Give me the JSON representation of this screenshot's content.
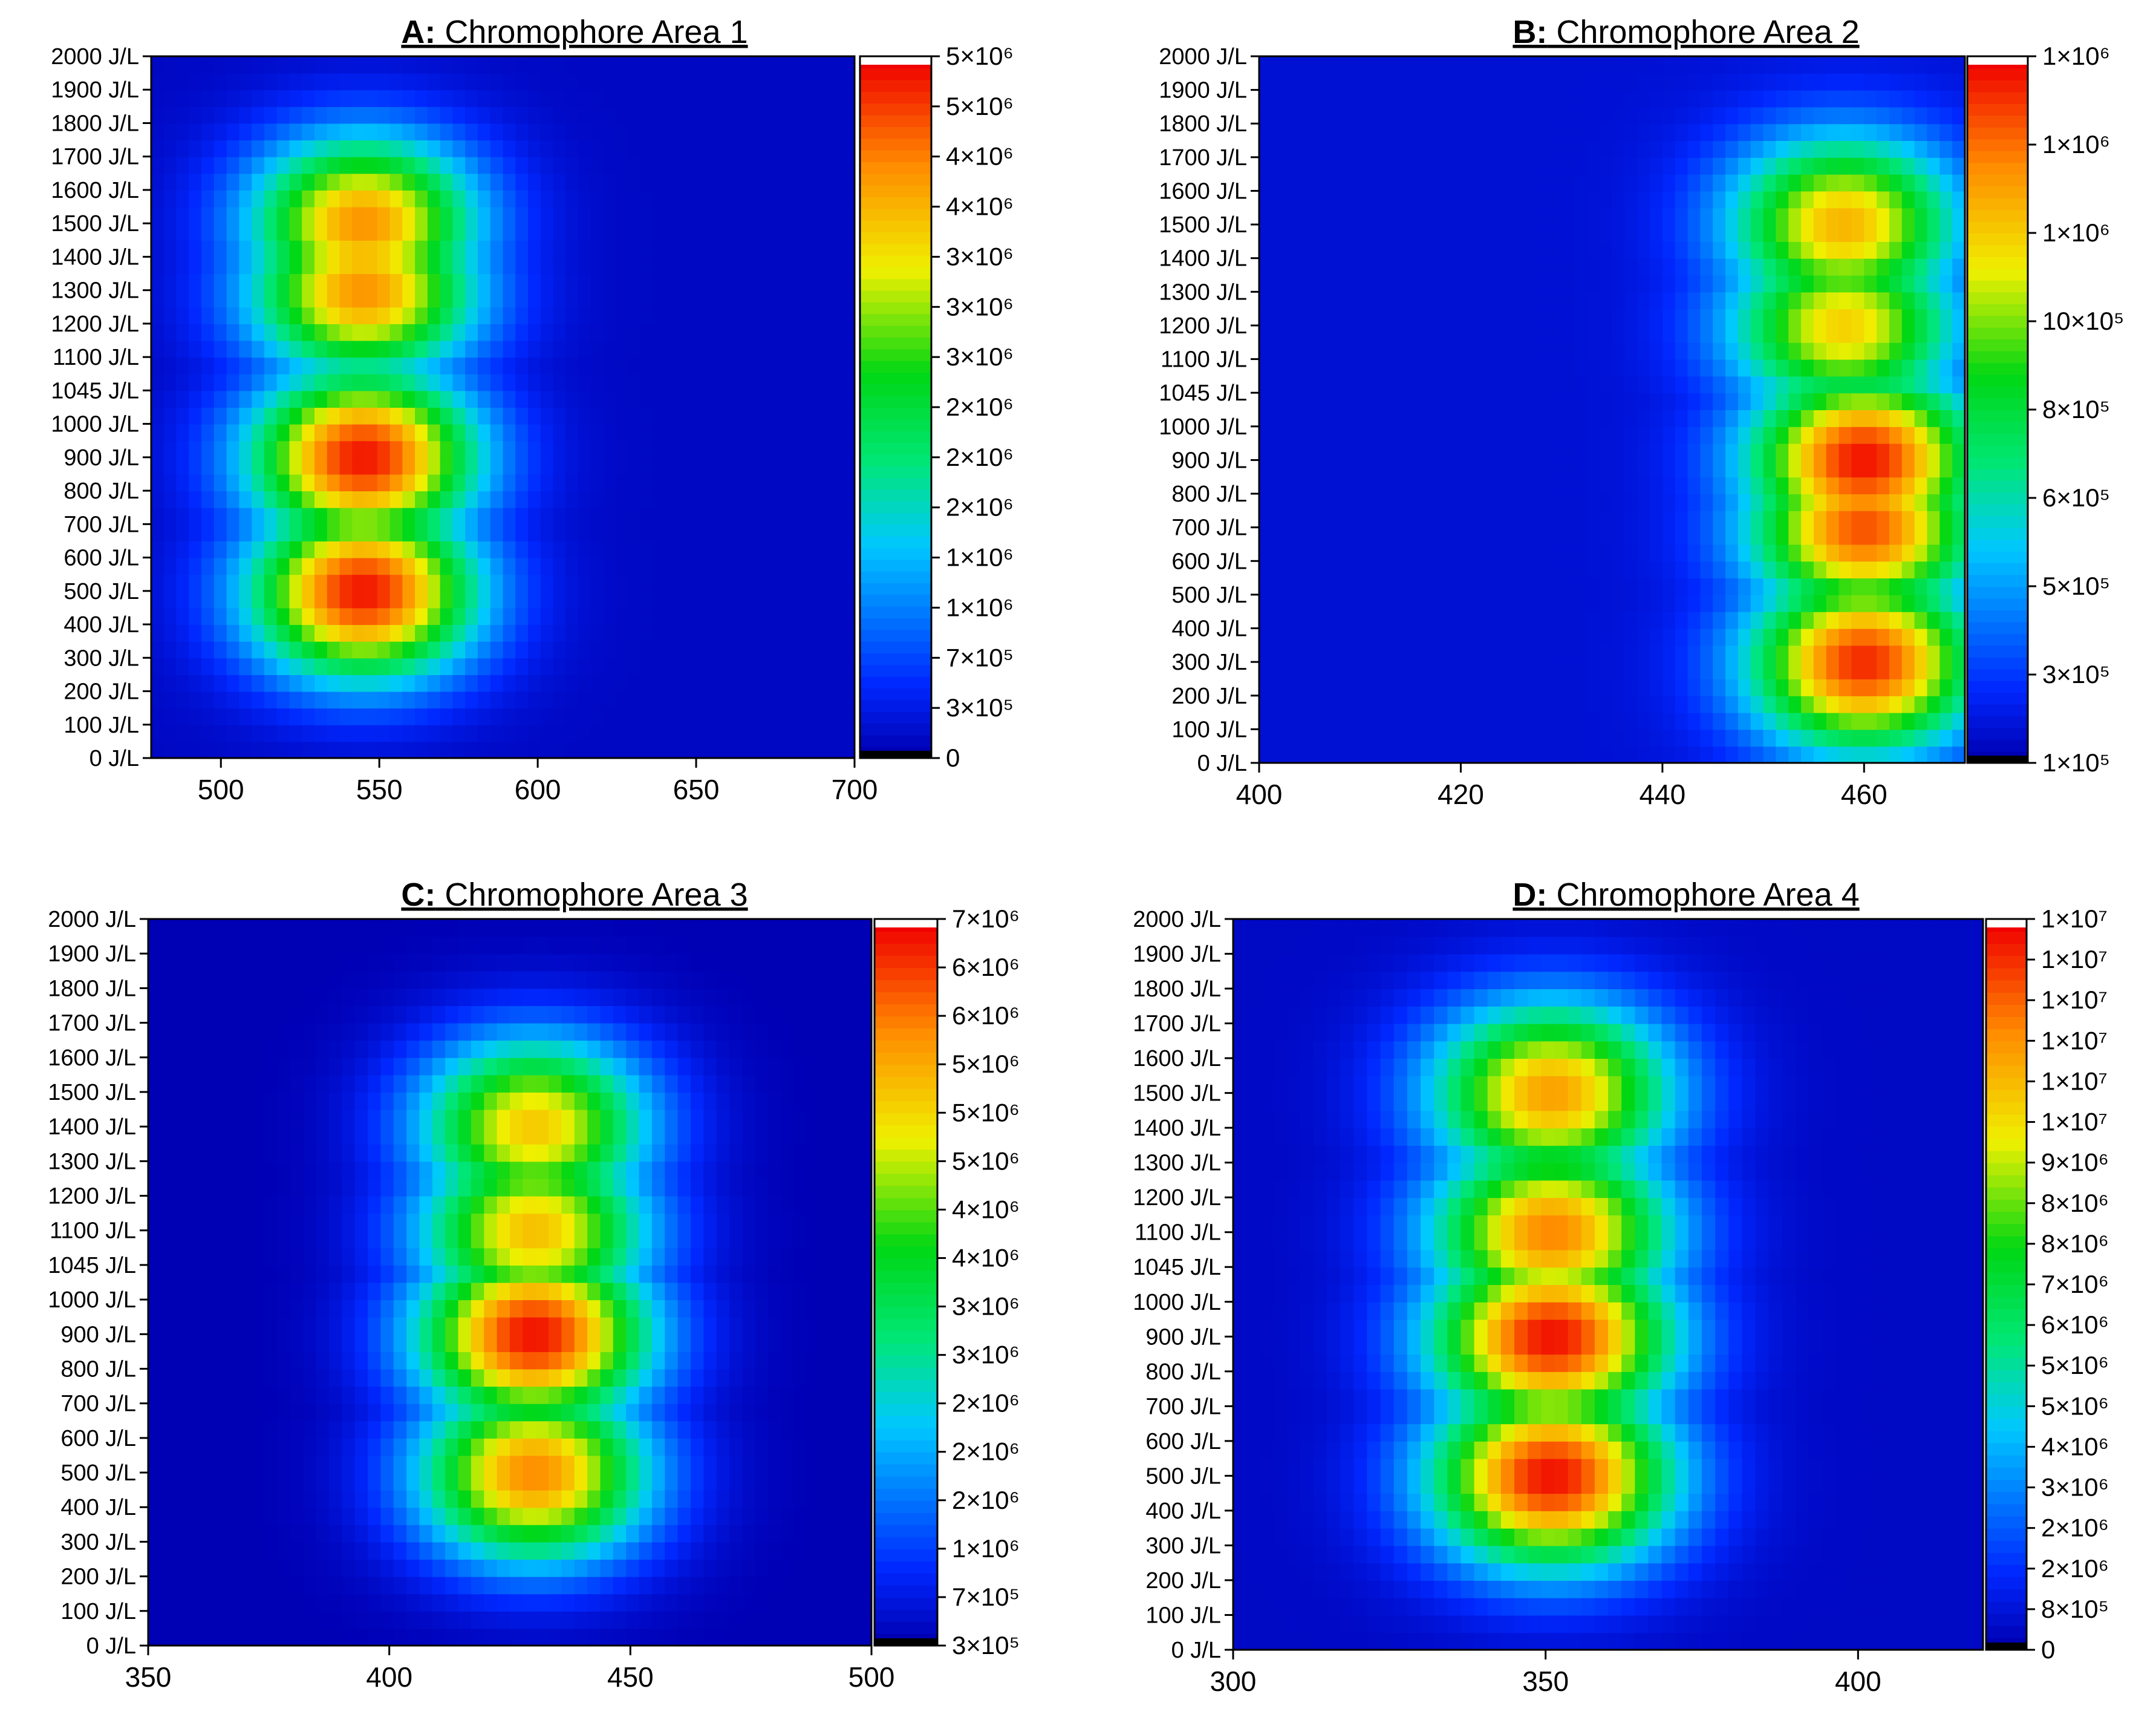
{
  "chart_data": [
    {
      "type": "heatmap",
      "title_prefix": "A:",
      "title": "Chromophore Area 1",
      "xlabel": "",
      "ylabel": "",
      "x_ticks": [
        "500",
        "550",
        "600",
        "650",
        "700"
      ],
      "x_tick_values": [
        500,
        550,
        600,
        650,
        700
      ],
      "xlim": [
        478,
        700
      ],
      "y_ticks": [
        "0 J/L",
        "100 J/L",
        "200 J/L",
        "300 J/L",
        "400 J/L",
        "500 J/L",
        "600 J/L",
        "700 J/L",
        "800 J/L",
        "900 J/L",
        "1000 J/L",
        "1045 J/L",
        "1100 J/L",
        "1200 J/L",
        "1300 J/L",
        "1400 J/L",
        "1500 J/L",
        "1600 J/L",
        "1700 J/L",
        "1800 J/L",
        "1900 J/L",
        "2000 J/L"
      ],
      "colorbar_ticks": [
        "0",
        "3×10⁵",
        "7×10⁵",
        "1×10⁶",
        "1×10⁶",
        "2×10⁶",
        "2×10⁶",
        "2×10⁶",
        "3×10⁶",
        "3×10⁶",
        "3×10⁶",
        "4×10⁶",
        "4×10⁶",
        "5×10⁶",
        "5×10⁶"
      ],
      "value_range": [
        0,
        5000000
      ],
      "peaks": [
        {
          "x": 545,
          "y_index": 5,
          "value": 4900000
        },
        {
          "x": 545,
          "y_index": 9,
          "value": 4900000
        },
        {
          "x": 545,
          "y_index": 14,
          "value": 4200000
        },
        {
          "x": 545,
          "y_index": 16,
          "value": 4200000
        }
      ],
      "background_value": 100000
    },
    {
      "type": "heatmap",
      "title_prefix": "B:",
      "title": "Chromophore Area 2",
      "xlabel": "",
      "ylabel": "",
      "x_ticks": [
        "400",
        "420",
        "440",
        "460"
      ],
      "x_tick_values": [
        400,
        420,
        440,
        460
      ],
      "xlim": [
        400,
        470
      ],
      "y_ticks": [
        "0 J/L",
        "100 J/L",
        "200 J/L",
        "300 J/L",
        "400 J/L",
        "500 J/L",
        "600 J/L",
        "700 J/L",
        "800 J/L",
        "900 J/L",
        "1000 J/L",
        "1045 J/L",
        "1100 J/L",
        "1200 J/L",
        "1300 J/L",
        "1400 J/L",
        "1500 J/L",
        "1600 J/L",
        "1700 J/L",
        "1800 J/L",
        "1900 J/L",
        "2000 J/L"
      ],
      "colorbar_ticks": [
        "1×10⁵",
        "3×10⁵",
        "5×10⁵",
        "6×10⁵",
        "8×10⁵",
        "10×10⁵",
        "1×10⁶",
        "1×10⁶",
        "1×10⁶"
      ],
      "value_range": [
        100000,
        1300000
      ],
      "peaks": [
        {
          "x": 460,
          "y_index": 3,
          "value": 1250000
        },
        {
          "x": 460,
          "y_index": 9,
          "value": 1280000
        },
        {
          "x": 460,
          "y_index": 7,
          "value": 1200000
        },
        {
          "x": 458,
          "y_index": 13,
          "value": 1000000
        },
        {
          "x": 458,
          "y_index": 16,
          "value": 1050000
        }
      ],
      "background_value": 150000
    },
    {
      "type": "heatmap",
      "title_prefix": "C:",
      "title": "Chromophore Area 3",
      "xlabel": "",
      "ylabel": "",
      "x_ticks": [
        "350",
        "400",
        "450",
        "500"
      ],
      "x_tick_values": [
        350,
        400,
        450,
        500
      ],
      "xlim": [
        350,
        500
      ],
      "y_ticks": [
        "0 J/L",
        "100 J/L",
        "200 J/L",
        "300 J/L",
        "400 J/L",
        "500 J/L",
        "600 J/L",
        "700 J/L",
        "800 J/L",
        "900 J/L",
        "1000 J/L",
        "1045 J/L",
        "1100 J/L",
        "1200 J/L",
        "1300 J/L",
        "1400 J/L",
        "1500 J/L",
        "1600 J/L",
        "1700 J/L",
        "1800 J/L",
        "1900 J/L",
        "2000 J/L"
      ],
      "colorbar_ticks": [
        "3×10⁵",
        "7×10⁵",
        "1×10⁶",
        "2×10⁶",
        "2×10⁶",
        "2×10⁶",
        "3×10⁶",
        "3×10⁶",
        "4×10⁶",
        "4×10⁶",
        "5×10⁶",
        "5×10⁶",
        "5×10⁶",
        "6×10⁶",
        "6×10⁶",
        "7×10⁶"
      ],
      "value_range": [
        300000,
        7000000
      ],
      "peaks": [
        {
          "x": 430,
          "y_index": 9,
          "value": 6900000
        },
        {
          "x": 430,
          "y_index": 5,
          "value": 6000000
        },
        {
          "x": 430,
          "y_index": 12,
          "value": 5500000
        },
        {
          "x": 430,
          "y_index": 15,
          "value": 5400000
        }
      ],
      "background_value": 300000
    },
    {
      "type": "heatmap",
      "title_prefix": "D:",
      "title": "Chromophore Area 4",
      "xlabel": "",
      "ylabel": "",
      "x_ticks": [
        "300",
        "350",
        "400"
      ],
      "x_tick_values": [
        300,
        350,
        400
      ],
      "xlim": [
        300,
        420
      ],
      "y_ticks": [
        "0 J/L",
        "100 J/L",
        "200 J/L",
        "300 J/L",
        "400 J/L",
        "500 J/L",
        "600 J/L",
        "700 J/L",
        "800 J/L",
        "900 J/L",
        "1000 J/L",
        "1045 J/L",
        "1100 J/L",
        "1200 J/L",
        "1300 J/L",
        "1400 J/L",
        "1500 J/L",
        "1600 J/L",
        "1700 J/L",
        "1800 J/L",
        "1900 J/L",
        "2000 J/L"
      ],
      "colorbar_ticks": [
        "0",
        "8×10⁵",
        "2×10⁶",
        "2×10⁶",
        "3×10⁶",
        "4×10⁶",
        "5×10⁶",
        "5×10⁶",
        "6×10⁶",
        "7×10⁶",
        "8×10⁶",
        "8×10⁶",
        "9×10⁶",
        "1×10⁷",
        "1×10⁷",
        "1×10⁷",
        "1×10⁷",
        "1×10⁷",
        "1×10⁷"
      ],
      "value_range": [
        0,
        14000000
      ],
      "peaks": [
        {
          "x": 351,
          "y_index": 5,
          "value": 13800000
        },
        {
          "x": 351,
          "y_index": 9,
          "value": 13800000
        },
        {
          "x": 351,
          "y_index": 12,
          "value": 12000000
        },
        {
          "x": 351,
          "y_index": 16,
          "value": 11500000
        }
      ],
      "background_value": 300000
    }
  ]
}
